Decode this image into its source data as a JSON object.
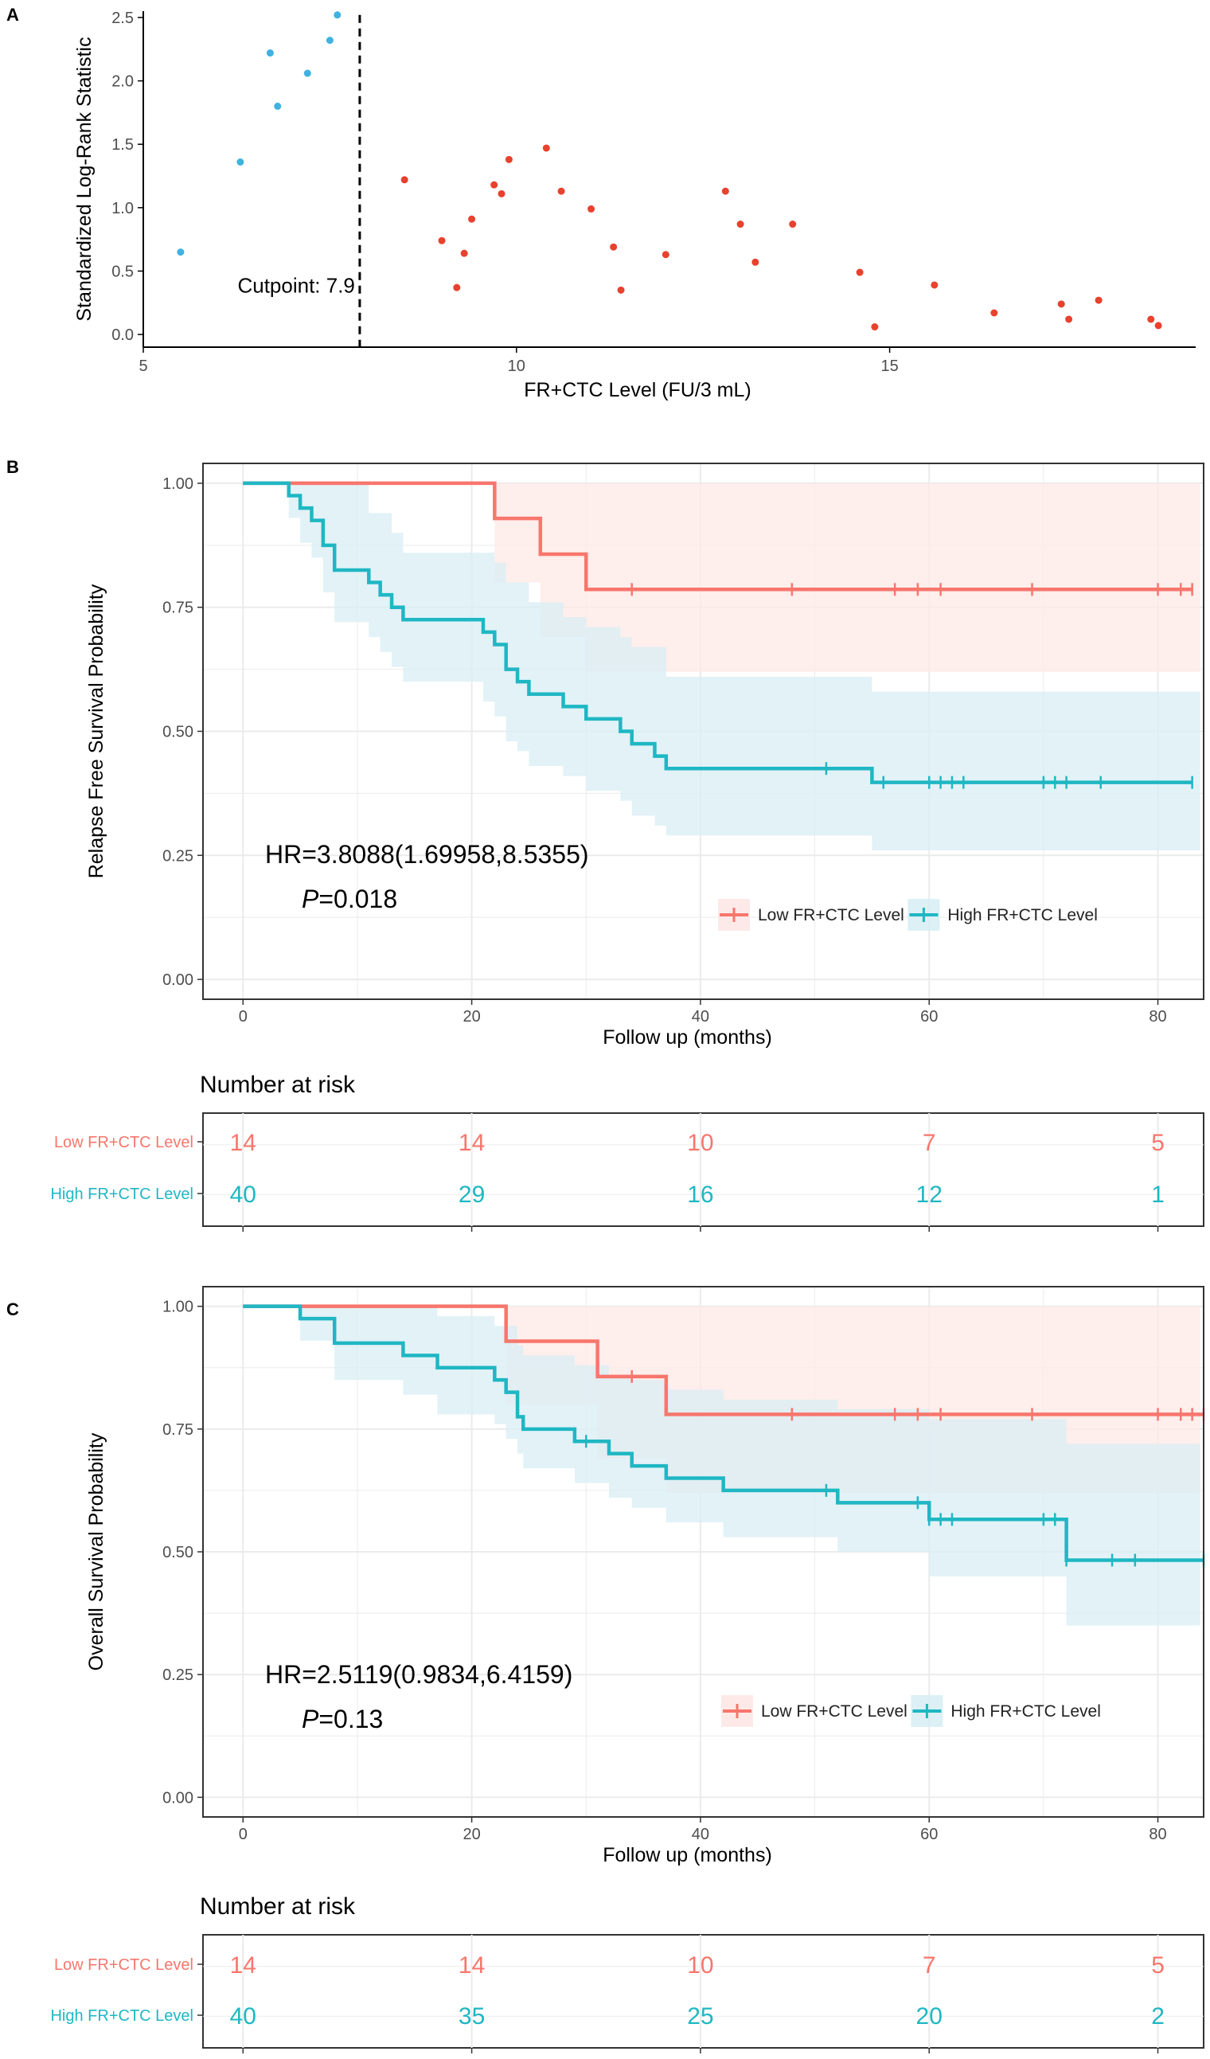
{
  "colors": {
    "low": "#F8766D",
    "high": "#1FB7C3",
    "lowDot": "#E8412D",
    "highDot": "#3FB2E0",
    "lowBand": "#FDE8E6",
    "highBand": "#D8EEF4",
    "grid": "#EBEBEB",
    "axis": "#333333",
    "tick": "#4D4D4D"
  },
  "chart_data": [
    {
      "panel": "A",
      "type": "scatter",
      "xlabel": "FR+CTC Level (FU/3 mL)",
      "ylabel": "Standardized Log-Rank Statistic",
      "xlim": [
        5,
        19.1
      ],
      "ylim": [
        -0.1,
        2.55
      ],
      "xticks": [
        5,
        10,
        15
      ],
      "xtick_labels": [
        "5",
        "10",
        "15"
      ],
      "yticks": [
        0,
        0.5,
        1,
        1.5,
        2,
        2.5
      ],
      "ytick_labels": [
        "0.0",
        "0.5",
        "1.0",
        "1.5",
        "2.0",
        "2.5"
      ],
      "cutpoint": 7.9,
      "cutpoint_label": "Cutpoint: 7.9",
      "series": [
        {
          "name": "below cutpoint",
          "color_key": "highDot",
          "points": [
            [
              5.5,
              0.65
            ],
            [
              6.3,
              1.36
            ],
            [
              6.7,
              2.22
            ],
            [
              6.8,
              1.8
            ],
            [
              7.2,
              2.06
            ],
            [
              7.5,
              2.32
            ],
            [
              7.6,
              2.52
            ]
          ]
        },
        {
          "name": "above cutpoint",
          "color_key": "lowDot",
          "points": [
            [
              8.5,
              1.22
            ],
            [
              9.0,
              0.74
            ],
            [
              9.2,
              0.37
            ],
            [
              9.3,
              0.64
            ],
            [
              9.4,
              0.91
            ],
            [
              9.7,
              1.18
            ],
            [
              9.8,
              1.11
            ],
            [
              9.9,
              1.38
            ],
            [
              10.4,
              1.47
            ],
            [
              10.6,
              1.13
            ],
            [
              11.0,
              0.99
            ],
            [
              11.3,
              0.69
            ],
            [
              11.4,
              0.35
            ],
            [
              12.0,
              0.63
            ],
            [
              12.8,
              1.13
            ],
            [
              13.0,
              0.87
            ],
            [
              13.2,
              0.57
            ],
            [
              13.7,
              0.87
            ],
            [
              14.6,
              0.49
            ],
            [
              14.8,
              0.06
            ],
            [
              15.6,
              0.39
            ],
            [
              16.4,
              0.17
            ],
            [
              17.3,
              0.24
            ],
            [
              17.4,
              0.12
            ],
            [
              17.8,
              0.27
            ],
            [
              18.5,
              0.12
            ],
            [
              18.6,
              0.07
            ]
          ]
        }
      ]
    },
    {
      "panel": "B",
      "type": "line",
      "subtype": "kaplan-meier",
      "xlabel": "Follow up (months)",
      "ylabel": "Relapse Free Survival Probability",
      "xlim": [
        -3.5,
        84
      ],
      "ylim": [
        -0.04,
        1.04
      ],
      "xticks": [
        0,
        20,
        40,
        60,
        80
      ],
      "xtick_labels": [
        "0",
        "20",
        "40",
        "60",
        "80"
      ],
      "yticks": [
        0,
        0.25,
        0.5,
        0.75,
        1
      ],
      "ytick_labels": [
        "0.00",
        "0.25",
        "0.50",
        "0.75",
        "1.00"
      ],
      "hr_text": "HR=3.8088(1.69958,8.5355)",
      "p_label": "P",
      "p_value": "=0.018",
      "legend": [
        "Low FR+CTC Level",
        "High FR+CTC Level"
      ],
      "series": [
        {
          "name": "Low FR+CTC Level",
          "color_key": "low",
          "band_key": "lowBand",
          "steps": [
            [
              0,
              1.0
            ],
            [
              22,
              0.929
            ],
            [
              26,
              0.857
            ],
            [
              30,
              0.786
            ],
            [
              83,
              0.786
            ]
          ],
          "lower": [
            [
              0,
              1.0
            ],
            [
              22,
              0.8
            ],
            [
              26,
              0.69
            ],
            [
              30,
              0.62
            ],
            [
              83,
              0.62
            ]
          ],
          "upper": [
            [
              0,
              1.0
            ],
            [
              22,
              1.0
            ],
            [
              83,
              1.0
            ]
          ],
          "censor": [
            34,
            48,
            57,
            59,
            61,
            69,
            80,
            82,
            83
          ]
        },
        {
          "name": "High FR+CTC Level",
          "color_key": "high",
          "band_key": "highBand",
          "steps": [
            [
              0,
              1.0
            ],
            [
              4,
              0.975
            ],
            [
              5,
              0.95
            ],
            [
              6,
              0.925
            ],
            [
              7,
              0.875
            ],
            [
              8,
              0.825
            ],
            [
              11,
              0.8
            ],
            [
              12,
              0.775
            ],
            [
              13,
              0.75
            ],
            [
              14,
              0.725
            ],
            [
              21,
              0.7
            ],
            [
              22,
              0.675
            ],
            [
              23,
              0.625
            ],
            [
              24,
              0.6
            ],
            [
              25,
              0.575
            ],
            [
              28,
              0.55
            ],
            [
              30,
              0.525
            ],
            [
              33,
              0.5
            ],
            [
              34,
              0.475
            ],
            [
              36,
              0.45
            ],
            [
              37,
              0.425
            ],
            [
              55,
              0.397
            ],
            [
              83,
              0.397
            ]
          ],
          "lower": [
            [
              0,
              1.0
            ],
            [
              4,
              0.93
            ],
            [
              5,
              0.88
            ],
            [
              6,
              0.85
            ],
            [
              7,
              0.78
            ],
            [
              8,
              0.72
            ],
            [
              11,
              0.69
            ],
            [
              12,
              0.66
            ],
            [
              13,
              0.63
            ],
            [
              14,
              0.6
            ],
            [
              21,
              0.56
            ],
            [
              22,
              0.53
            ],
            [
              23,
              0.48
            ],
            [
              24,
              0.46
            ],
            [
              25,
              0.43
            ],
            [
              28,
              0.41
            ],
            [
              30,
              0.38
            ],
            [
              33,
              0.36
            ],
            [
              34,
              0.33
            ],
            [
              36,
              0.31
            ],
            [
              37,
              0.29
            ],
            [
              55,
              0.26
            ],
            [
              83,
              0.26
            ]
          ],
          "upper": [
            [
              0,
              1.0
            ],
            [
              8,
              1.0
            ],
            [
              11,
              0.94
            ],
            [
              13,
              0.9
            ],
            [
              14,
              0.86
            ],
            [
              21,
              0.86
            ],
            [
              22,
              0.84
            ],
            [
              23,
              0.8
            ],
            [
              25,
              0.76
            ],
            [
              28,
              0.73
            ],
            [
              30,
              0.71
            ],
            [
              33,
              0.69
            ],
            [
              34,
              0.67
            ],
            [
              37,
              0.61
            ],
            [
              55,
              0.58
            ],
            [
              83,
              0.58
            ]
          ],
          "censor": [
            51,
            56,
            60,
            61,
            62,
            63,
            70,
            71,
            72,
            75,
            83
          ]
        }
      ],
      "risk_table": {
        "title": "Number at risk",
        "times": [
          0,
          20,
          40,
          60,
          80
        ],
        "rows": [
          {
            "label": "Low FR+CTC Level",
            "color_key": "low",
            "values": [
              "14",
              "14",
              "10",
              "7",
              "5"
            ]
          },
          {
            "label": "High FR+CTC Level",
            "color_key": "high",
            "values": [
              "40",
              "29",
              "16",
              "12",
              "1"
            ]
          }
        ]
      }
    },
    {
      "panel": "C",
      "type": "line",
      "subtype": "kaplan-meier",
      "xlabel": "Follow up (months)",
      "ylabel": "Overall Survival Probability",
      "xlim": [
        -3.5,
        84
      ],
      "ylim": [
        -0.04,
        1.04
      ],
      "xticks": [
        0,
        20,
        40,
        60,
        80
      ],
      "xtick_labels": [
        "0",
        "20",
        "40",
        "60",
        "80"
      ],
      "yticks": [
        0,
        0.25,
        0.5,
        0.75,
        1
      ],
      "ytick_labels": [
        "0.00",
        "0.25",
        "0.50",
        "0.75",
        "1.00"
      ],
      "hr_text": "HR=2.5119(0.9834,6.4159)",
      "p_label": "P",
      "p_value": "=0.13",
      "legend": [
        "Low FR+CTC Level",
        "High FR+CTC Level"
      ],
      "series": [
        {
          "name": "Low FR+CTC Level",
          "color_key": "low",
          "band_key": "lowBand",
          "steps": [
            [
              0,
              1.0
            ],
            [
              23,
              0.929
            ],
            [
              31,
              0.857
            ],
            [
              37,
              0.78
            ],
            [
              84,
              0.78
            ]
          ],
          "lower": [
            [
              0,
              1.0
            ],
            [
              23,
              0.8
            ],
            [
              31,
              0.69
            ],
            [
              37,
              0.62
            ],
            [
              84,
              0.62
            ]
          ],
          "upper": [
            [
              0,
              1.0
            ],
            [
              84,
              1.0
            ]
          ],
          "censor": [
            34,
            48,
            57,
            59,
            61,
            69,
            80,
            82,
            83,
            84
          ]
        },
        {
          "name": "High FR+CTC Level",
          "color_key": "high",
          "band_key": "highBand",
          "steps": [
            [
              0,
              1.0
            ],
            [
              5,
              0.975
            ],
            [
              8,
              0.925
            ],
            [
              14,
              0.9
            ],
            [
              17,
              0.875
            ],
            [
              22,
              0.85
            ],
            [
              23,
              0.825
            ],
            [
              24,
              0.775
            ],
            [
              24.5,
              0.75
            ],
            [
              29,
              0.725
            ],
            [
              32,
              0.7
            ],
            [
              34,
              0.675
            ],
            [
              37,
              0.65
            ],
            [
              42,
              0.625
            ],
            [
              52,
              0.6
            ],
            [
              60,
              0.566
            ],
            [
              72,
              0.483
            ],
            [
              84,
              0.483
            ]
          ],
          "lower": [
            [
              0,
              1.0
            ],
            [
              5,
              0.93
            ],
            [
              8,
              0.85
            ],
            [
              14,
              0.82
            ],
            [
              17,
              0.78
            ],
            [
              22,
              0.76
            ],
            [
              23,
              0.73
            ],
            [
              24,
              0.7
            ],
            [
              24.5,
              0.67
            ],
            [
              29,
              0.64
            ],
            [
              32,
              0.61
            ],
            [
              34,
              0.59
            ],
            [
              37,
              0.56
            ],
            [
              42,
              0.53
            ],
            [
              52,
              0.5
            ],
            [
              60,
              0.45
            ],
            [
              72,
              0.35
            ],
            [
              84,
              0.35
            ]
          ],
          "upper": [
            [
              0,
              1.0
            ],
            [
              14,
              1.0
            ],
            [
              17,
              0.98
            ],
            [
              22,
              0.96
            ],
            [
              24,
              0.92
            ],
            [
              24.5,
              0.9
            ],
            [
              29,
              0.88
            ],
            [
              32,
              0.86
            ],
            [
              34,
              0.85
            ],
            [
              37,
              0.83
            ],
            [
              42,
              0.81
            ],
            [
              52,
              0.79
            ],
            [
              60,
              0.77
            ],
            [
              72,
              0.72
            ],
            [
              84,
              0.72
            ]
          ],
          "censor": [
            30,
            51,
            59,
            60,
            61,
            62,
            70,
            71,
            72,
            76,
            78,
            84
          ]
        }
      ],
      "risk_table": {
        "title": "Number at risk",
        "times": [
          0,
          20,
          40,
          60,
          80
        ],
        "rows": [
          {
            "label": "Low FR+CTC Level",
            "color_key": "low",
            "values": [
              "14",
              "14",
              "10",
              "7",
              "5"
            ]
          },
          {
            "label": "High FR+CTC Level",
            "color_key": "high",
            "values": [
              "40",
              "35",
              "25",
              "20",
              "2"
            ]
          }
        ]
      }
    }
  ]
}
